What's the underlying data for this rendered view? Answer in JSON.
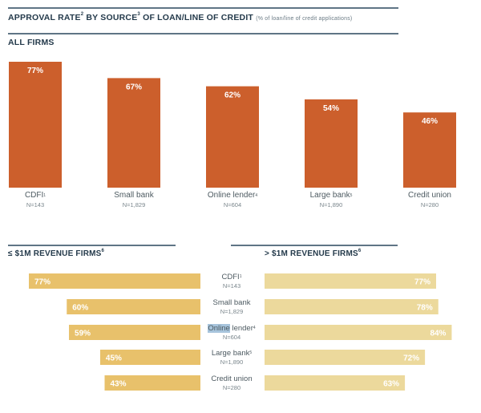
{
  "header": {
    "title": "APPROVAL RATE",
    "title_sup1": "2",
    "title_mid": " BY SOURCE",
    "title_sup2": "3",
    "title_end": " OF LOAN/LINE OF CREDIT",
    "subtitle": "(% of loan/line of credit applications)"
  },
  "colors": {
    "all_firms_bar": "#cc5f2c",
    "small_firms_bar": "#e8c16b",
    "large_firms_bar": "#ecd99c",
    "heading": "#243a4b",
    "rule": "#5f7585"
  },
  "chart_data": [
    {
      "type": "bar",
      "title": "ALL FIRMS",
      "categories": [
        "CDFI",
        "Small bank",
        "Online lender",
        "Large bank",
        "Credit union"
      ],
      "category_sups": [
        "1",
        "",
        "4",
        "5",
        ""
      ],
      "n_labels": [
        "N=143",
        "N=1,829",
        "N=604",
        "N=1,890",
        "N=280"
      ],
      "values": [
        77,
        67,
        62,
        54,
        46
      ],
      "value_labels": [
        "77%",
        "67%",
        "62%",
        "54%",
        "46%"
      ],
      "ylim": [
        0,
        100
      ],
      "grid": false,
      "legend": "none"
    },
    {
      "type": "bar",
      "orientation": "horizontal",
      "title": "≤ $1M REVENUE FIRMS",
      "title_sup": "6",
      "categories": [
        "CDFI",
        "Small bank",
        "Online lender",
        "Large bank",
        "Credit union"
      ],
      "values": [
        77,
        60,
        59,
        45,
        43
      ],
      "value_labels": [
        "77%",
        "60%",
        "59%",
        "45%",
        "43%"
      ],
      "xlim": [
        0,
        100
      ],
      "direction": "right-to-left"
    },
    {
      "type": "bar",
      "orientation": "horizontal",
      "title": "> $1M REVENUE FIRMS",
      "title_sup": "6",
      "categories": [
        "CDFI",
        "Small bank",
        "Online lender",
        "Large bank",
        "Credit union"
      ],
      "values": [
        77,
        78,
        84,
        72,
        63
      ],
      "value_labels": [
        "77%",
        "78%",
        "84%",
        "72%",
        "63%"
      ],
      "xlim": [
        0,
        100
      ],
      "direction": "left-to-right"
    }
  ],
  "mid_labels": [
    {
      "name": "CDFI",
      "sup": "1",
      "n": "N=143"
    },
    {
      "name": "Small bank",
      "sup": "",
      "n": "N=1,829"
    },
    {
      "name_hl": "Online",
      "name": " lender",
      "sup": "4",
      "n": "N=604"
    },
    {
      "name": "Large bank",
      "sup": "5",
      "n": "N=1,890"
    },
    {
      "name": "Credit union",
      "sup": "",
      "n": "N=280"
    }
  ]
}
